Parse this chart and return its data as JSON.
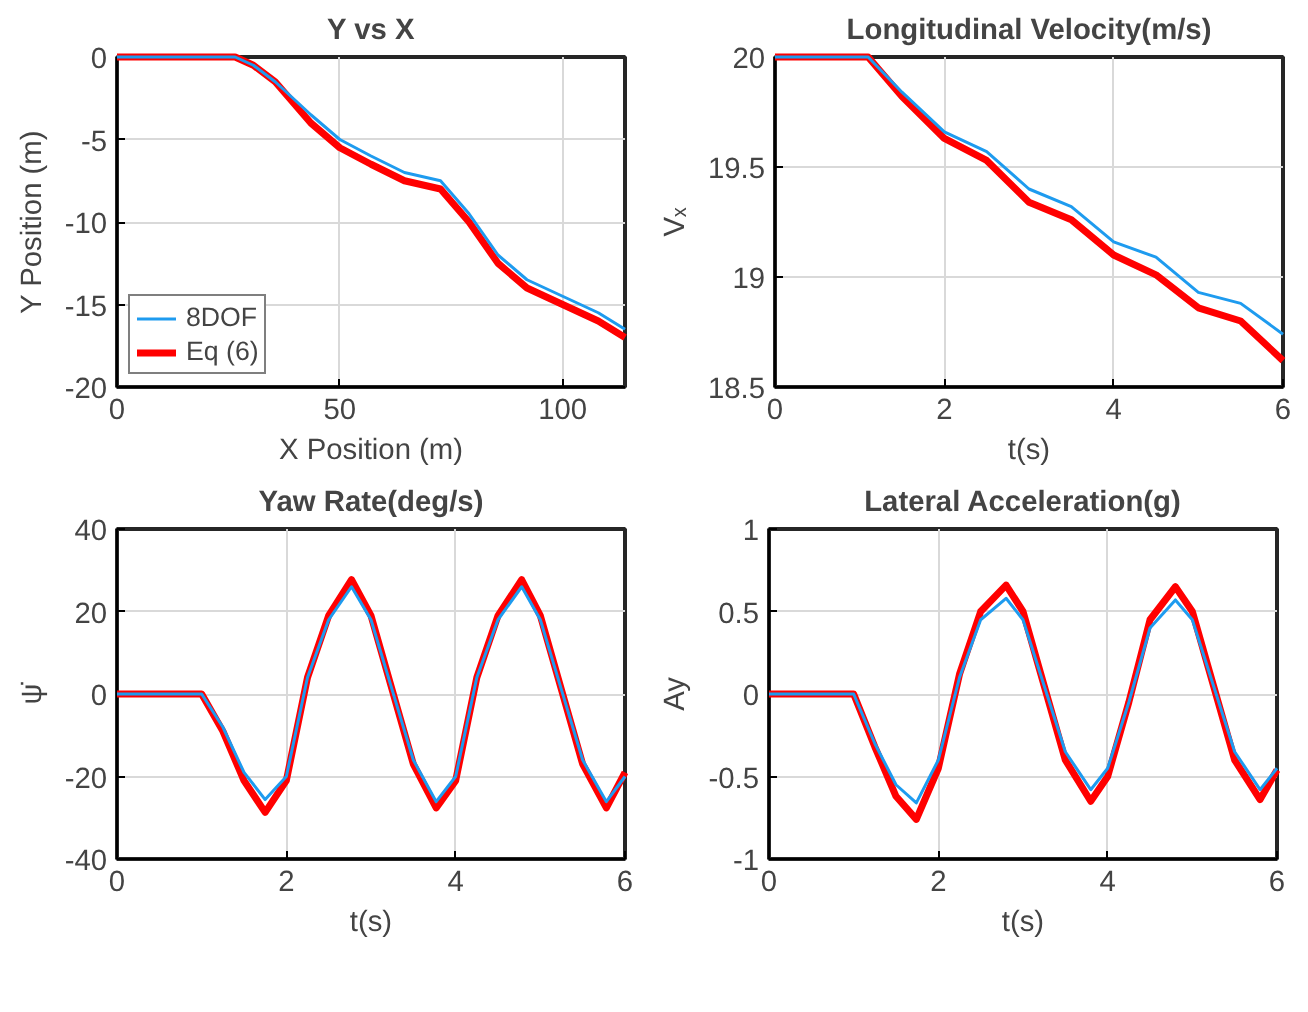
{
  "chart_data": [
    {
      "type": "line",
      "title": "Y vs X",
      "xlabel": "X Position (m)",
      "ylabel": "Y Position (m)",
      "xlim": [
        0,
        114
      ],
      "ylim": [
        -20,
        0
      ],
      "xticks": [
        0,
        50,
        100
      ],
      "yticks": [
        -20,
        -15,
        -10,
        -5,
        0
      ],
      "grid": true,
      "legend": "bottom left",
      "series": [
        {
          "name": "8DOF",
          "color": "#1e9bef",
          "x": [
            0,
            26.5,
            30.6,
            35.5,
            43.5,
            50,
            57,
            64.5,
            72.6,
            79,
            85.5,
            92,
            100,
            108,
            114
          ],
          "values": [
            0,
            0,
            -0.5,
            -1.5,
            -3.5,
            -5,
            -6,
            -7,
            -7.5,
            -9.5,
            -12,
            -13.5,
            -14.5,
            -15.5,
            -16.5
          ]
        },
        {
          "name": "Eq (6)",
          "color": "#ff0000",
          "x": [
            0,
            26.5,
            30.6,
            35.5,
            43.5,
            50,
            57,
            64.5,
            72.6,
            79,
            85.5,
            92,
            100,
            108,
            114
          ],
          "values": [
            0,
            0,
            -0.5,
            -1.5,
            -4,
            -5.5,
            -6.5,
            -7.5,
            -8,
            -10,
            -12.5,
            -14,
            -15,
            -16,
            -17
          ]
        }
      ]
    },
    {
      "type": "line",
      "title": "Longitudinal Velocity(m/s)",
      "xlabel": "t(s)",
      "ylabel": "Vₓ",
      "xlim": [
        0,
        6
      ],
      "ylim": [
        18.5,
        20
      ],
      "xticks": [
        0,
        2,
        4,
        6
      ],
      "yticks": [
        18.5,
        19,
        19.5,
        20
      ],
      "grid": true,
      "series": [
        {
          "color": "#1e9bef",
          "x": [
            0,
            1.1,
            1.5,
            2,
            2.5,
            3,
            3.5,
            4,
            4.5,
            5,
            5.5,
            6
          ],
          "values": [
            20,
            20,
            19.84,
            19.66,
            19.57,
            19.4,
            19.32,
            19.16,
            19.09,
            18.93,
            18.88,
            18.74
          ]
        },
        {
          "color": "#ff0000",
          "x": [
            0,
            1.1,
            1.5,
            2,
            2.5,
            3,
            3.5,
            4,
            4.5,
            5,
            5.5,
            6
          ],
          "values": [
            20,
            20,
            19.82,
            19.63,
            19.53,
            19.34,
            19.26,
            19.1,
            19.01,
            18.86,
            18.8,
            18.62
          ]
        }
      ]
    },
    {
      "type": "line",
      "title": "Yaw Rate(deg/s)",
      "xlabel": "t(s)",
      "ylabel": "ψ̇",
      "xlim": [
        0,
        6
      ],
      "ylim": [
        -40,
        40
      ],
      "xticks": [
        0,
        2,
        4,
        6
      ],
      "yticks": [
        -40,
        -20,
        0,
        20,
        40
      ],
      "grid": true,
      "series": [
        {
          "color": "#1e9bef",
          "x": [
            0,
            1,
            1.25,
            1.5,
            1.75,
            2,
            2.25,
            2.5,
            2.77,
            3,
            3.25,
            3.5,
            3.77,
            4,
            4.25,
            4.5,
            4.78,
            5,
            5.25,
            5.5,
            5.78,
            6
          ],
          "values": [
            0,
            0,
            -8,
            -19,
            -25.6,
            -20,
            4,
            18,
            26,
            18,
            1,
            -16,
            -26.1,
            -20,
            4,
            18,
            26,
            18,
            1,
            -16,
            -26.1,
            -20
          ]
        },
        {
          "color": "#ff0000",
          "x": [
            0,
            1,
            1.25,
            1.5,
            1.75,
            2,
            2.25,
            2.5,
            2.77,
            3,
            3.25,
            3.5,
            3.77,
            4,
            4.25,
            4.5,
            4.78,
            5,
            5.25,
            5.5,
            5.78,
            6
          ],
          "values": [
            0,
            0,
            -9,
            -21,
            -28.7,
            -21,
            4,
            19,
            27.7,
            19,
            1,
            -17,
            -27.6,
            -21,
            4,
            19,
            27.7,
            19,
            1,
            -17,
            -27.6,
            -19
          ]
        }
      ]
    },
    {
      "type": "line",
      "title": "Lateral Acceleration(g)",
      "xlabel": "t(s)",
      "ylabel": "Ay",
      "xlim": [
        0,
        6
      ],
      "ylim": [
        -1,
        1
      ],
      "xticks": [
        0,
        2,
        4,
        6
      ],
      "yticks": [
        -1,
        -0.5,
        0,
        0.5,
        1
      ],
      "grid": true,
      "series": [
        {
          "color": "#1e9bef",
          "x": [
            0,
            1,
            1.25,
            1.5,
            1.74,
            2,
            2.25,
            2.5,
            2.8,
            3,
            3.25,
            3.5,
            3.8,
            4,
            4.25,
            4.5,
            4.8,
            5,
            5.25,
            5.5,
            5.8,
            6
          ],
          "values": [
            0,
            0,
            -0.3,
            -0.55,
            -0.66,
            -0.4,
            0.1,
            0.45,
            0.58,
            0.45,
            0.05,
            -0.35,
            -0.58,
            -0.45,
            -0.05,
            0.4,
            0.57,
            0.45,
            0.05,
            -0.35,
            -0.58,
            -0.45
          ]
        },
        {
          "color": "#ff0000",
          "x": [
            0,
            1,
            1.25,
            1.5,
            1.74,
            2,
            2.25,
            2.5,
            2.8,
            3,
            3.25,
            3.5,
            3.8,
            4,
            4.25,
            4.5,
            4.8,
            5,
            5.25,
            5.5,
            5.8,
            6
          ],
          "values": [
            0,
            0,
            -0.32,
            -0.62,
            -0.76,
            -0.45,
            0.12,
            0.5,
            0.66,
            0.5,
            0.05,
            -0.4,
            -0.65,
            -0.5,
            -0.05,
            0.45,
            0.65,
            0.5,
            0.05,
            -0.4,
            -0.64,
            -0.46
          ]
        }
      ]
    }
  ]
}
